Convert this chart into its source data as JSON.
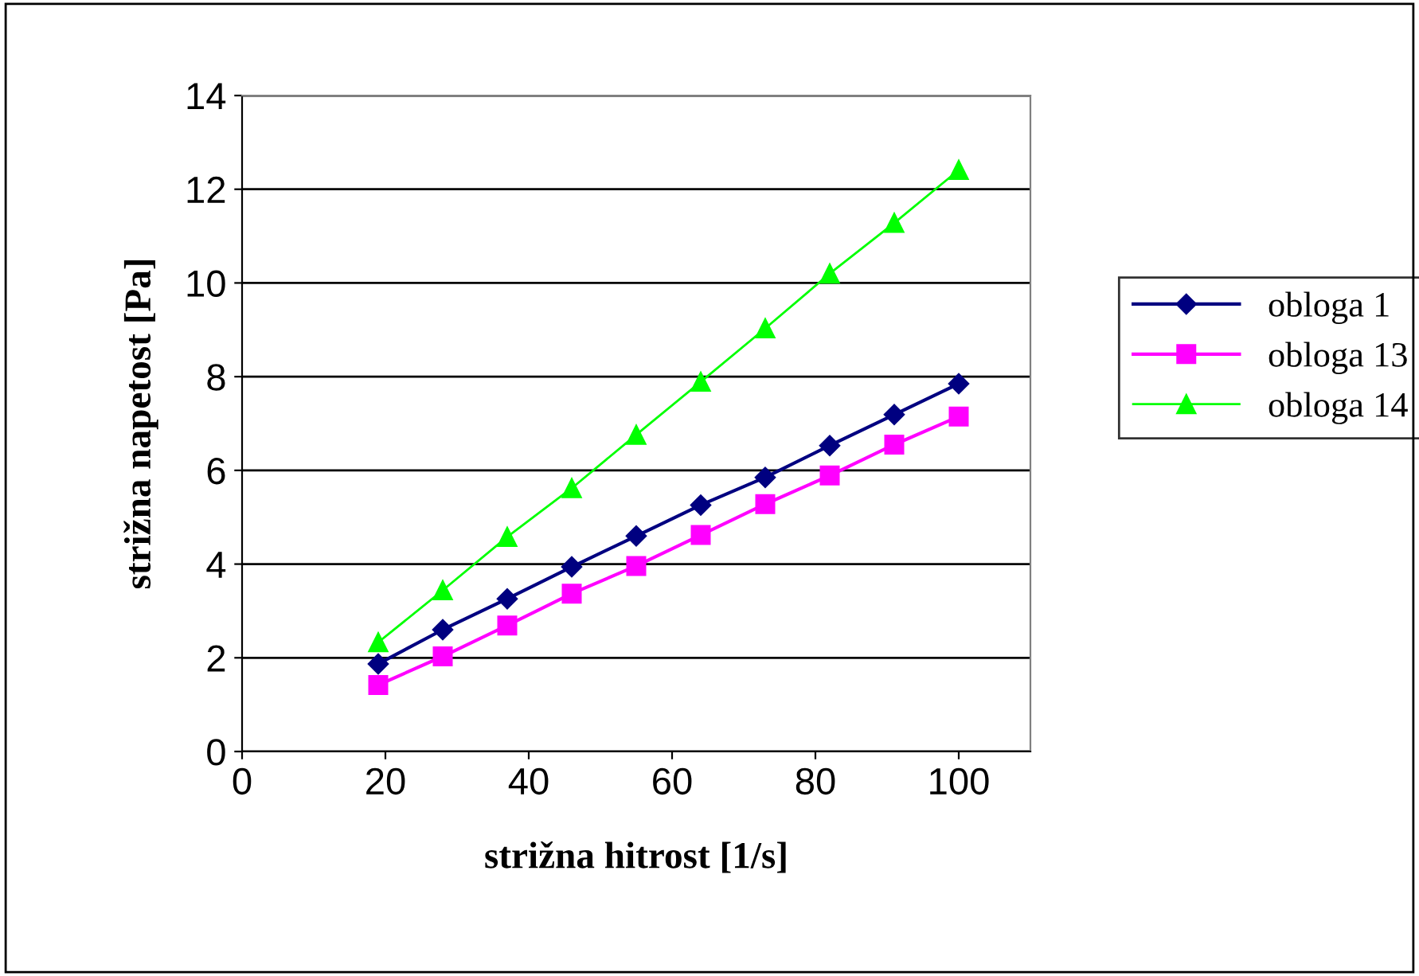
{
  "chart_data": {
    "type": "line",
    "xlabel": "strižna hitrost [1/s]",
    "ylabel": "strižna napetost [Pa]",
    "x": [
      19,
      28,
      37,
      46,
      55,
      64,
      73,
      82,
      91,
      100
    ],
    "series": [
      {
        "name": "obloga 1",
        "color": "#000080",
        "marker": "diamond",
        "values": [
          1.87,
          2.6,
          3.26,
          3.94,
          4.6,
          5.26,
          5.85,
          6.53,
          7.19,
          7.85
        ]
      },
      {
        "name": "obloga 13",
        "color": "#ff00ff",
        "marker": "square",
        "values": [
          1.42,
          2.03,
          2.69,
          3.37,
          3.96,
          4.62,
          5.28,
          5.89,
          6.55,
          7.15
        ]
      },
      {
        "name": "obloga 14",
        "color": "#00ff00",
        "marker": "triangle",
        "values": [
          2.33,
          3.44,
          4.58,
          5.62,
          6.76,
          7.89,
          9.03,
          10.2,
          11.28,
          12.41
        ]
      }
    ],
    "xlim": [
      0,
      110
    ],
    "xticks": [
      0,
      20,
      40,
      60,
      80,
      100
    ],
    "ylim": [
      0,
      14
    ],
    "yticks": [
      0,
      2,
      4,
      6,
      8,
      10,
      12,
      14
    ],
    "grid": "y",
    "legend": "right"
  }
}
